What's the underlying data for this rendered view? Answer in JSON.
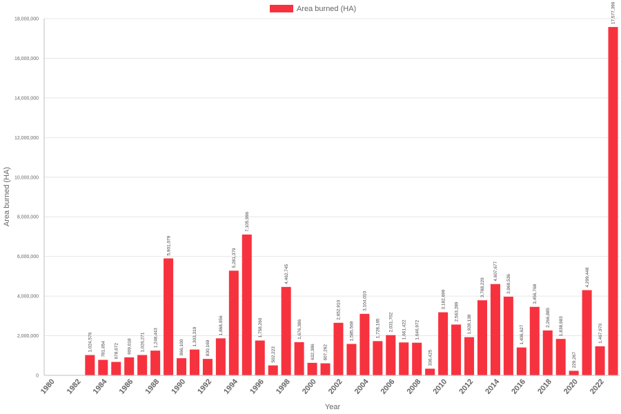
{
  "chart_data": {
    "type": "bar",
    "legend": {
      "label": "Area burned (HA)",
      "position": "top-center"
    },
    "xlabel": "Year",
    "ylabel": "Area burned (HA)",
    "ylim": [
      0,
      18000000
    ],
    "yticks": [
      "0",
      "2,000,000",
      "4,000,000",
      "6,000,000",
      "8,000,000",
      "10,000,000",
      "12,000,000",
      "14,000,000",
      "16,000,000",
      "18,000,000"
    ],
    "ytick_values": [
      0,
      2000000,
      4000000,
      6000000,
      8000000,
      10000000,
      12000000,
      14000000,
      16000000,
      18000000
    ],
    "xtick_labels": [
      "1980",
      "1982",
      "1984",
      "1986",
      "1988",
      "1990",
      "1992",
      "1994",
      "1996",
      "1998",
      "2000",
      "2002",
      "2004",
      "2006",
      "2008",
      "2010",
      "2012",
      "2014",
      "2016",
      "2018",
      "2020",
      "2022"
    ],
    "bar_color": "#f7323f",
    "grid": true,
    "categories": [
      "1980",
      "1981",
      "1982",
      "1983",
      "1984",
      "1985",
      "1986",
      "1987",
      "1988",
      "1989",
      "1990",
      "1991",
      "1992",
      "1993",
      "1994",
      "1995",
      "1996",
      "1997",
      "1998",
      "1999",
      "2000",
      "2001",
      "2002",
      "2003",
      "2004",
      "2005",
      "2006",
      "2007",
      "2008",
      "2009",
      "2010",
      "2011",
      "2012",
      "2013",
      "2014",
      "2015",
      "2016",
      "2017",
      "2018",
      "2019",
      "2020",
      "2021",
      "2022",
      "2023"
    ],
    "values": [
      null,
      null,
      null,
      1024576,
      781654,
      678672,
      909018,
      1026271,
      1248443,
      5901079,
      866100,
      1303319,
      830169,
      1868056,
      5281379,
      7105996,
      1758260,
      502223,
      4462745,
      1676386,
      632386,
      607292,
      2652910,
      1585569,
      3104010,
      1728165,
      2031702,
      1661422,
      1646972,
      336425,
      3182699,
      2563289,
      1928138,
      3788229,
      4607677,
      3969536,
      1406627,
      3456768,
      2266885,
      1838983,
      229267,
      4299448,
      1467970,
      17577396
    ],
    "value_labels": [
      "",
      "",
      "",
      "1,024,576",
      "781,654",
      "678,672",
      "909,018",
      "1,026,271",
      "1,248,443",
      "5,901,079",
      "866,100",
      "1,303,319",
      "830,169",
      "1,868,056",
      "5,281,379",
      "7,105,996",
      "1,758,260",
      "502,223",
      "4,462,745",
      "1,676,386",
      "632,386",
      "607,292",
      "2,652,910",
      "1,585,569",
      "3,104,010",
      "1,728,165",
      "2,031,702",
      "1,661,422",
      "1,646,972",
      "336,425",
      "3,182,699",
      "2,563,289",
      "1,928,138",
      "3,788,229",
      "4,607,677",
      "3,969,536",
      "1,406,627",
      "3,456,768",
      "2,266,885",
      "1,838,983",
      "229,267",
      "4,299,448",
      "1,467,970",
      "17,577,396"
    ]
  }
}
